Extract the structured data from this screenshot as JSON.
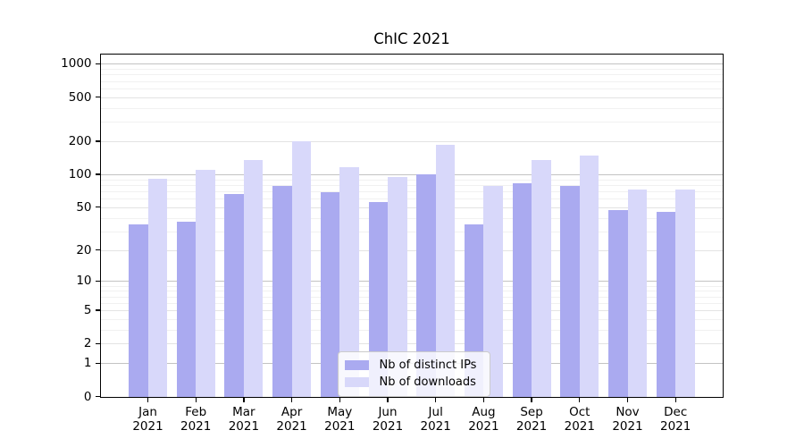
{
  "chart_data": {
    "type": "bar",
    "title": "ChIC 2021",
    "categories": [
      "Jan",
      "Feb",
      "Mar",
      "Apr",
      "May",
      "Jun",
      "Jul",
      "Aug",
      "Sep",
      "Oct",
      "Nov",
      "Dec"
    ],
    "year_label": "2021",
    "series": [
      {
        "name": "Nb of distinct IPs",
        "color": "#aaaaf0",
        "values": [
          35,
          37,
          66,
          78,
          68,
          56,
          100,
          35,
          83,
          79,
          47,
          45
        ]
      },
      {
        "name": "Nb of downloads",
        "color": "#d8d8fa",
        "values": [
          91,
          110,
          136,
          200,
          116,
          95,
          184,
          78,
          135,
          148,
          73,
          72
        ]
      }
    ],
    "xlabel": "",
    "ylabel": "",
    "y_scale": "log10(1+value)",
    "y_ticks": [
      0,
      1,
      2,
      5,
      10,
      20,
      50,
      100,
      200,
      500,
      1000
    ],
    "y_minor_ticks": [
      3,
      4,
      6,
      7,
      8,
      9,
      30,
      40,
      60,
      70,
      80,
      90,
      300,
      400,
      600,
      700,
      800,
      900
    ],
    "ylim": [
      0,
      1228
    ],
    "grid": true,
    "legend_position": "lower center"
  },
  "colors": {
    "axis": "#000000",
    "grid_major_power10": "#c3c3c3",
    "grid_major": "#e3e3e3",
    "grid_minor": "#f1f1f1",
    "legend_border": "#cccccc"
  }
}
